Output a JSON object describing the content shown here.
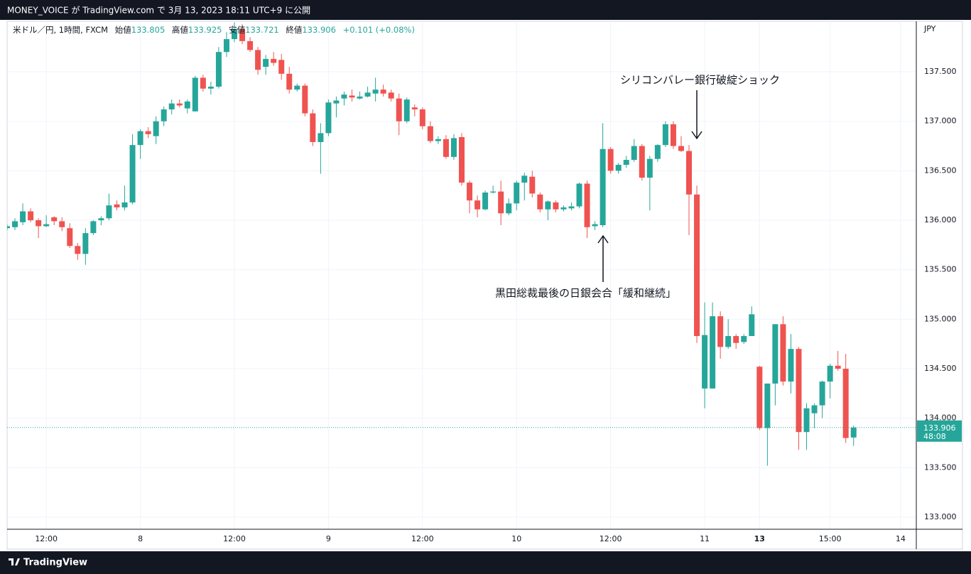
{
  "header": {
    "text": "MONEY_VOICE が TradingView.com で 3月 13, 2023 18:11 UTC+9 に公開"
  },
  "chart_data": {
    "type": "candlestick",
    "symbol": "米ドル／円, 1時間, FXCM",
    "open_label": "始値",
    "high_label": "高値",
    "low_label": "安値",
    "close_label": "終値",
    "change": "+0.101 (+0.08%)",
    "y_unit": "JPY",
    "countdown": "48:08",
    "up_color": "#26a69a",
    "down_color": "#ef5350",
    "open": [
      135.92,
      135.93,
      135.98,
      136.09,
      136.0,
      135.94,
      136.03,
      135.99,
      135.92,
      135.74,
      135.66,
      135.87,
      136.0,
      136.02,
      136.16,
      136.13,
      136.18,
      136.76,
      136.9,
      136.85,
      137.0,
      137.12,
      137.18,
      137.13,
      137.1,
      137.44,
      137.33,
      137.35,
      137.7,
      137.83,
      137.93,
      137.81,
      137.72,
      137.55,
      137.63,
      137.62,
      137.48,
      137.32,
      137.36,
      137.08,
      136.79,
      136.88,
      137.18,
      137.23,
      137.26,
      137.23,
      137.25,
      137.28,
      137.32,
      137.29,
      137.23,
      137.0,
      137.14,
      137.12,
      136.95,
      136.8,
      136.82,
      136.64,
      136.84,
      136.38,
      136.2,
      136.11,
      136.28,
      136.29,
      136.07,
      136.17,
      136.38,
      136.44,
      136.26,
      136.11,
      136.18,
      136.11,
      136.12,
      136.14,
      136.37,
      135.94,
      135.95,
      136.72,
      136.5,
      136.56,
      136.61,
      136.75,
      136.43,
      136.62,
      136.76,
      136.97,
      136.75,
      136.7,
      136.26,
      134.3,
      134.3,
      135.03,
      134.72,
      134.83,
      134.77,
      134.83,
      134.52,
      133.9,
      134.35,
      134.95,
      134.37,
      134.7,
      133.86,
      134.05,
      134.13,
      134.37,
      134.53,
      134.5,
      133.805
    ],
    "high": [
      135.96,
      136.02,
      136.17,
      136.12,
      136.02,
      136.05,
      136.04,
      136.03,
      135.97,
      135.77,
      135.92,
      136.0,
      136.04,
      136.27,
      136.2,
      136.35,
      136.87,
      136.92,
      136.94,
      137.05,
      137.15,
      137.22,
      137.22,
      137.22,
      137.46,
      137.47,
      137.4,
      137.75,
      137.9,
      138.0,
      137.98,
      137.85,
      137.75,
      137.67,
      137.7,
      137.68,
      137.55,
      137.38,
      137.38,
      137.12,
      136.98,
      137.22,
      137.25,
      137.3,
      137.32,
      137.3,
      137.35,
      137.44,
      137.37,
      137.32,
      137.28,
      137.24,
      137.17,
      137.14,
      137.0,
      136.85,
      136.86,
      136.87,
      136.88,
      136.4,
      136.25,
      136.3,
      136.35,
      136.4,
      136.22,
      136.4,
      136.48,
      136.5,
      136.28,
      136.2,
      136.2,
      136.15,
      136.18,
      136.38,
      136.4,
      135.99,
      136.98,
      136.74,
      136.58,
      136.65,
      136.82,
      136.77,
      136.65,
      136.77,
      137.0,
      137.0,
      136.85,
      136.76,
      136.35,
      135.17,
      135.17,
      135.08,
      135.0,
      134.85,
      134.85,
      135.13,
      134.53,
      134.35,
      134.95,
      135.03,
      134.85,
      134.72,
      134.15,
      134.15,
      134.38,
      134.55,
      134.68,
      134.65,
      133.925
    ],
    "low": [
      135.9,
      135.9,
      135.95,
      135.98,
      135.82,
      135.93,
      135.95,
      135.89,
      135.72,
      135.6,
      135.55,
      135.85,
      135.95,
      136.0,
      136.1,
      136.1,
      136.16,
      136.62,
      136.83,
      136.77,
      136.95,
      137.07,
      137.14,
      137.08,
      137.1,
      137.3,
      137.27,
      137.33,
      137.65,
      137.8,
      137.78,
      137.7,
      137.47,
      137.47,
      137.56,
      137.42,
      137.28,
      137.3,
      137.05,
      136.75,
      136.47,
      136.85,
      137.04,
      137.16,
      137.2,
      137.22,
      137.24,
      137.2,
      137.25,
      137.2,
      136.86,
      136.98,
      137.05,
      136.92,
      136.78,
      136.77,
      136.62,
      136.61,
      136.35,
      136.07,
      136.03,
      136.1,
      136.27,
      135.95,
      136.05,
      136.1,
      136.2,
      136.23,
      136.08,
      136.0,
      136.08,
      136.09,
      136.1,
      136.12,
      135.82,
      135.9,
      135.93,
      136.47,
      136.47,
      136.53,
      136.59,
      136.4,
      136.1,
      136.59,
      136.74,
      136.72,
      136.69,
      135.85,
      134.76,
      134.1,
      134.3,
      134.6,
      134.7,
      134.7,
      134.75,
      134.83,
      133.88,
      133.52,
      134.13,
      134.33,
      134.25,
      133.68,
      133.68,
      133.9,
      134.0,
      134.2,
      134.48,
      133.75,
      133.721
    ],
    "close": [
      135.94,
      135.99,
      136.09,
      136.0,
      135.94,
      135.96,
      135.99,
      135.93,
      135.74,
      135.66,
      135.87,
      135.99,
      136.02,
      136.15,
      136.13,
      136.18,
      136.76,
      136.9,
      136.87,
      137.0,
      137.12,
      137.18,
      137.16,
      137.2,
      137.44,
      137.33,
      137.35,
      137.7,
      137.83,
      137.93,
      137.81,
      137.72,
      137.52,
      137.63,
      137.59,
      137.48,
      137.32,
      137.36,
      137.08,
      136.79,
      136.88,
      137.19,
      137.21,
      137.27,
      137.24,
      137.25,
      137.29,
      137.32,
      137.28,
      137.23,
      137.0,
      137.22,
      137.12,
      136.95,
      136.8,
      136.82,
      136.64,
      136.83,
      136.38,
      136.2,
      136.11,
      136.28,
      136.29,
      136.07,
      136.17,
      136.38,
      136.45,
      136.27,
      136.11,
      136.19,
      136.11,
      136.13,
      136.14,
      136.37,
      135.93,
      135.96,
      136.72,
      136.5,
      136.56,
      136.61,
      136.75,
      136.43,
      136.62,
      136.76,
      136.97,
      136.75,
      136.7,
      136.26,
      134.83,
      134.84,
      135.03,
      134.72,
      134.83,
      134.76,
      134.83,
      135.05,
      133.9,
      134.35,
      134.95,
      134.37,
      134.7,
      133.86,
      134.1,
      134.13,
      134.37,
      134.53,
      134.5,
      133.8,
      133.906
    ],
    "xlim": [
      0,
      116
    ],
    "xticks": [
      {
        "value": 5,
        "label": "12:00"
      },
      {
        "value": 17,
        "label": "8"
      },
      {
        "value": 29,
        "label": "12:00"
      },
      {
        "value": 41,
        "label": "9"
      },
      {
        "value": 53,
        "label": "12:00"
      },
      {
        "value": 65,
        "label": "10"
      },
      {
        "value": 77,
        "label": "12:00"
      },
      {
        "value": 89,
        "label": "11"
      },
      {
        "value": 96,
        "label": "13",
        "bold": true
      },
      {
        "value": 105,
        "label": "15:00"
      },
      {
        "value": 114,
        "label": "14"
      }
    ],
    "ylim": [
      132.878,
      138.01
    ],
    "yticks": [
      {
        "value": 133,
        "label": "133.000"
      },
      {
        "value": 133.5,
        "label": "133.500"
      },
      {
        "value": 134,
        "label": "134.000"
      },
      {
        "value": 134.5,
        "label": "134.500"
      },
      {
        "value": 135,
        "label": "135.000"
      },
      {
        "value": 135.5,
        "label": "135.500"
      },
      {
        "value": 136,
        "label": "136.000"
      },
      {
        "value": 136.5,
        "label": "136.500"
      },
      {
        "value": 137,
        "label": "137.000"
      },
      {
        "value": 137.5,
        "label": "137.500"
      }
    ],
    "grid": true,
    "annotations": [
      "シリコンバレー銀行破綻ショック",
      "黒田総裁最後の日銀会合「緩和継続」"
    ]
  },
  "footer": {
    "brand": "TradingView"
  }
}
